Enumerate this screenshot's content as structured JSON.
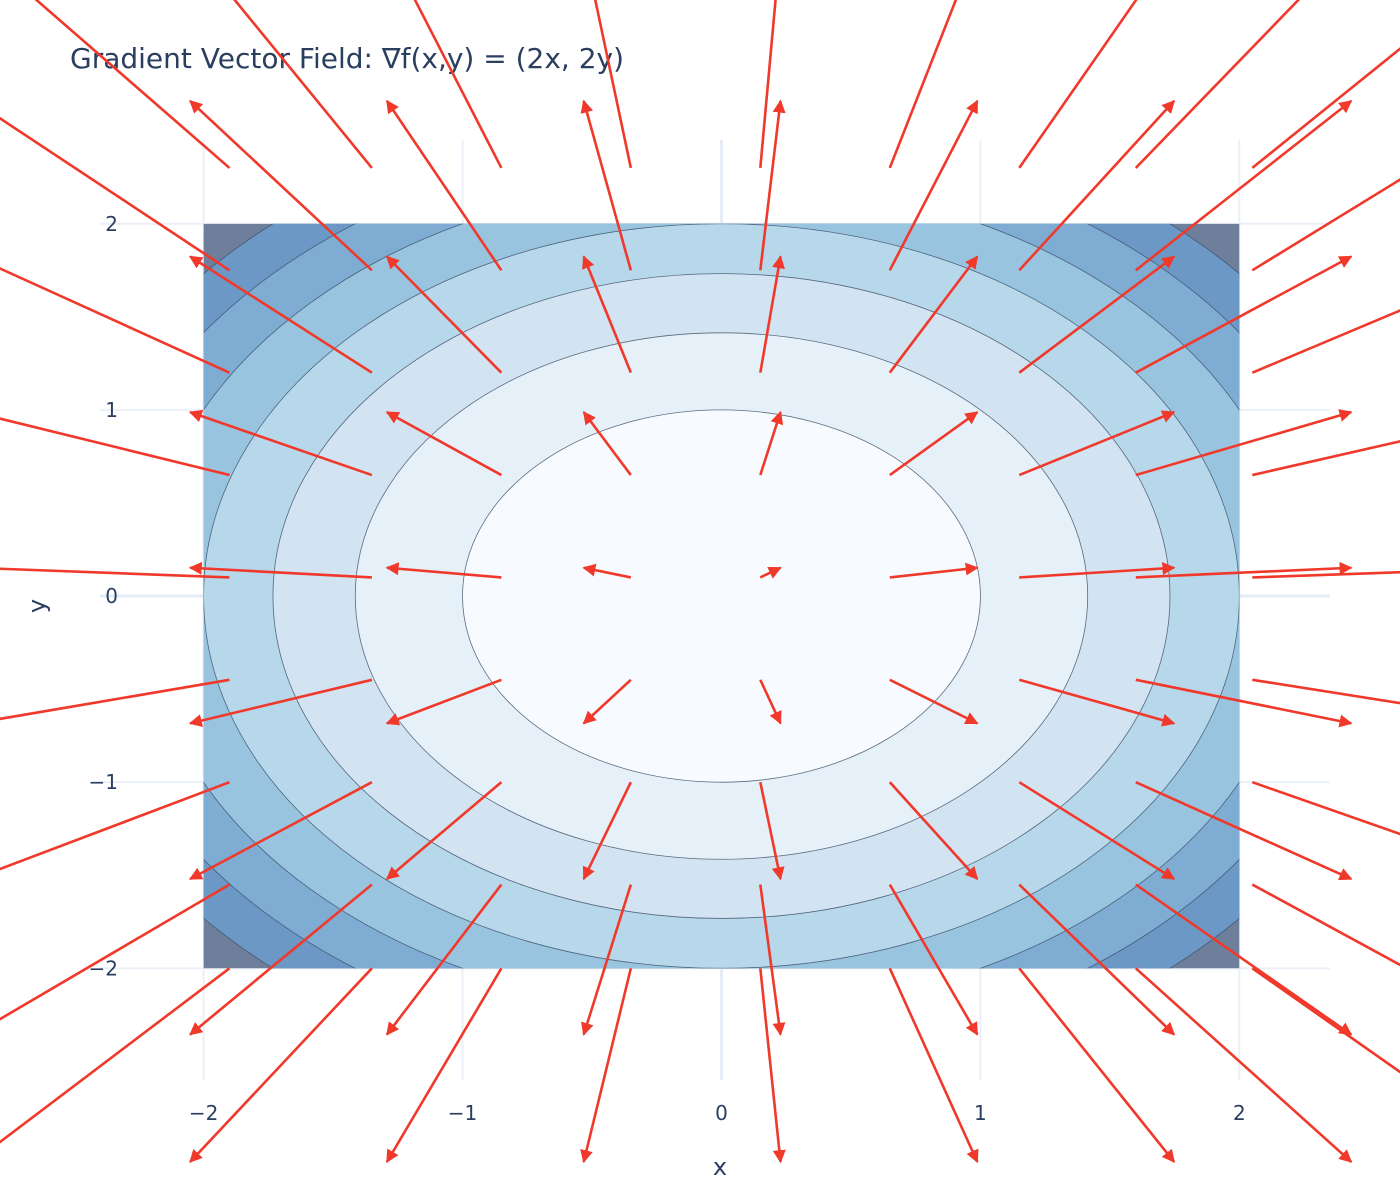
{
  "chart_data": {
    "type": "contour+quiver",
    "title": "Gradient Vector Field: ∇f(x,y) = (2x, 2y)",
    "xlabel": "x",
    "ylabel": "y",
    "xlim": [
      -2.4,
      2.35
    ],
    "ylim": [
      -2.6,
      2.45
    ],
    "xticks": [
      -2,
      -1,
      0,
      1,
      2
    ],
    "yticks": [
      -2,
      -1,
      0,
      1,
      2
    ],
    "xtick_labels": [
      "−2",
      "−1",
      "0",
      "1",
      "2"
    ],
    "ytick_labels": [
      "−2",
      "−1",
      "0",
      "1",
      "2"
    ],
    "grid": true,
    "contour": {
      "function": "f(x,y) = x^2 + y^2",
      "x_range": [
        -2,
        2
      ],
      "y_range": [
        -2,
        2
      ],
      "levels": [
        1,
        2,
        3,
        4,
        5,
        6,
        7
      ],
      "colors": [
        "#f7fbff",
        "#e6f0f9",
        "#d2e4f2",
        "#b7d7ea",
        "#98c4e0",
        "#7eacd3",
        "#6c98c5",
        "#6d7f9a"
      ],
      "line_color": "#3b4a63"
    },
    "quiver": {
      "x": [
        -1.9,
        -1.35,
        -0.85,
        -0.35,
        0.15,
        0.65,
        1.15,
        1.6,
        2.05
      ],
      "y": [
        -2.0,
        -1.55,
        -1.0,
        -0.45,
        0.1,
        0.65,
        1.2,
        1.75,
        2.3
      ],
      "u_formula": "2x",
      "v_formula": "2y",
      "color": "#f0392b"
    }
  }
}
